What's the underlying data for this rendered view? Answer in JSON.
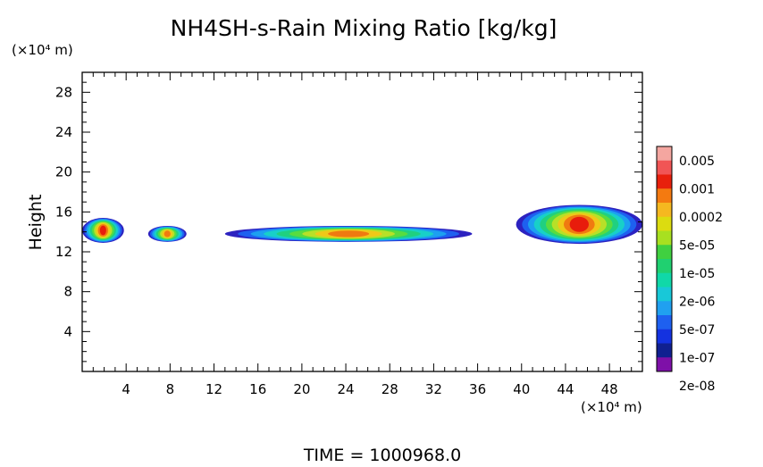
{
  "chart_data": {
    "type": "heatmap",
    "title": "NH4SH-s-Rain Mixing Ratio [kg/kg]",
    "ylabel": "Height",
    "y_unit": "(×10⁴ m)",
    "x_unit": "(×10⁴ m)",
    "footer": "TIME = 1000968.0",
    "xlim": [
      0,
      51
    ],
    "ylim": [
      0,
      30
    ],
    "x_ticks": [
      "4",
      "8",
      "12",
      "16",
      "20",
      "24",
      "28",
      "32",
      "36",
      "40",
      "44",
      "48"
    ],
    "y_ticks": [
      "4",
      "8",
      "12",
      "16",
      "20",
      "24",
      "28"
    ],
    "colorbar": {
      "labels": [
        "0.005",
        "0.001",
        "0.0002",
        "5e-05",
        "1e-05",
        "2e-06",
        "5e-07",
        "1e-07",
        "2e-08"
      ],
      "colors": [
        "#f4a6a0",
        "#f15555",
        "#e8200c",
        "#f47a10",
        "#f5b820",
        "#dcdc10",
        "#a8e020",
        "#40d040",
        "#20d070",
        "#10d8a8",
        "#18c8d8",
        "#20a0f0",
        "#1e60f0",
        "#1432e0",
        "#102090",
        "#7e10a8"
      ]
    },
    "regions": [
      {
        "x": [
          0,
          3.8
        ],
        "y": [
          12.9,
          15.4
        ],
        "peak": 0.0002
      },
      {
        "x": [
          6,
          9.5
        ],
        "y": [
          13.0,
          14.6
        ],
        "peak": 1e-05
      },
      {
        "x": [
          13,
          35.5
        ],
        "y": [
          13.0,
          14.6
        ],
        "peak": 1e-05
      },
      {
        "x": [
          39.5,
          51
        ],
        "y": [
          12.8,
          16.7
        ],
        "peak": 0.001
      }
    ]
  }
}
